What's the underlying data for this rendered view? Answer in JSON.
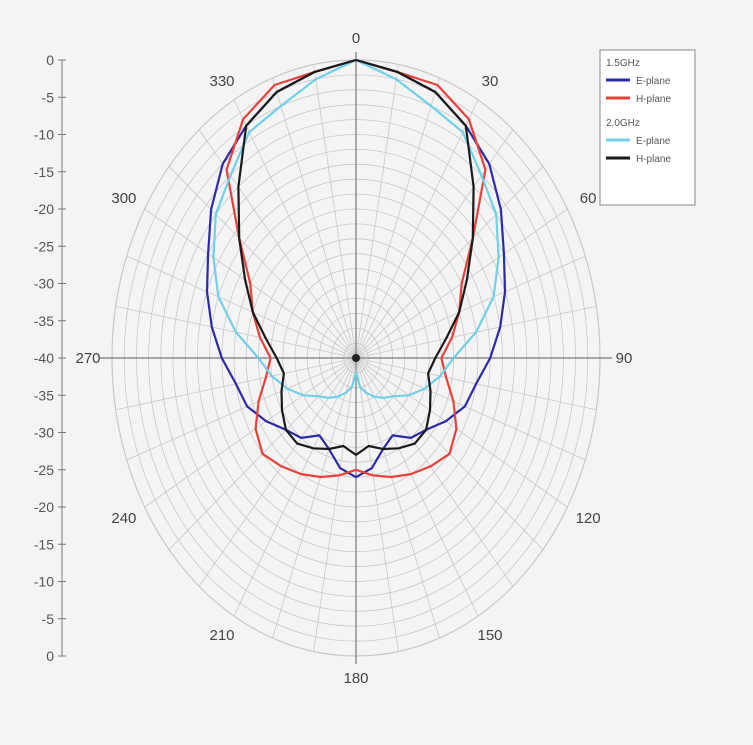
{
  "chart_data": {
    "type": "polar_line",
    "title": "",
    "radial_axis": {
      "range": [
        -40,
        0
      ],
      "tick_labels": [
        "0",
        "-5",
        "-10",
        "-15",
        "-20",
        "-25",
        "-30",
        "-35",
        "-40",
        "-35",
        "-30",
        "-25",
        "-20",
        "-15",
        "-10",
        "-5",
        "0"
      ]
    },
    "angle_labels": [
      "0",
      "30",
      "60",
      "90",
      "120",
      "150",
      "180",
      "210",
      "240",
      "270",
      "300",
      "330"
    ],
    "grid": true,
    "legend_position": "top-right",
    "legend": {
      "groups": [
        {
          "title": "1.5GHz",
          "entries": [
            {
              "label": "E-plane",
              "color": "#2b2ba8"
            },
            {
              "label": "H-plane",
              "color": "#e8403a"
            }
          ]
        },
        {
          "title": "2.0GHz",
          "entries": [
            {
              "label": "E-plane",
              "color": "#6fd0e8"
            },
            {
              "label": "H-plane",
              "color": "#1a1a1a"
            }
          ]
        }
      ]
    },
    "series": [
      {
        "name": "1.5GHz E-plane",
        "color": "#2b2ba8",
        "theta": [
          0,
          10,
          20,
          30,
          40,
          50,
          60,
          70,
          80,
          90,
          100,
          110,
          120,
          130,
          140,
          150,
          160,
          170,
          180,
          190,
          200,
          210,
          220,
          230,
          240,
          250,
          260,
          270,
          280,
          290,
          300,
          310,
          320,
          330,
          340,
          350
        ],
        "r": [
          0,
          -1,
          -2,
          -4,
          -6,
          -9,
          -12,
          -14,
          -16,
          -18,
          -20,
          -21,
          -23,
          -25,
          -26,
          -28,
          -27,
          -25,
          -24,
          -25,
          -27,
          -28,
          -26,
          -25,
          -23,
          -21,
          -20,
          -18,
          -16,
          -14,
          -12,
          -9,
          -6,
          -4,
          -2,
          -1
        ]
      },
      {
        "name": "1.5GHz H-plane",
        "color": "#e8403a",
        "theta": [
          0,
          10,
          20,
          30,
          40,
          50,
          60,
          70,
          80,
          90,
          100,
          110,
          120,
          130,
          140,
          150,
          160,
          170,
          180,
          190,
          200,
          210,
          220,
          230,
          240,
          250,
          260,
          270,
          280,
          290,
          300,
          310,
          320,
          330,
          340,
          350
        ],
        "r": [
          0,
          -1,
          -1,
          -3,
          -7,
          -15,
          -20,
          -22,
          -24,
          -26,
          -25,
          -23,
          -21,
          -20,
          -21,
          -22,
          -23,
          -24,
          -25,
          -24,
          -23,
          -22,
          -21,
          -20,
          -21,
          -23,
          -25,
          -26,
          -24,
          -22,
          -20,
          -15,
          -7,
          -3,
          -1,
          -1
        ]
      },
      {
        "name": "2.0GHz E-plane",
        "color": "#6fd0e8",
        "theta": [
          0,
          10,
          20,
          30,
          40,
          50,
          60,
          70,
          80,
          90,
          100,
          110,
          120,
          130,
          140,
          150,
          160,
          170,
          180,
          190,
          200,
          210,
          220,
          230,
          240,
          250,
          260,
          270,
          280,
          290,
          300,
          310,
          320,
          330,
          340,
          350
        ],
        "r": [
          0,
          -2,
          -4,
          -5,
          -8,
          -10,
          -13,
          -16,
          -20,
          -24,
          -26,
          -28,
          -30,
          -32,
          -33,
          -34,
          -35,
          -36,
          -38,
          -36,
          -35,
          -34,
          -33,
          -32,
          -30,
          -28,
          -26,
          -24,
          -20,
          -16,
          -13,
          -10,
          -8,
          -5,
          -4,
          -2
        ]
      },
      {
        "name": "2.0GHz H-plane",
        "color": "#1a1a1a",
        "theta": [
          0,
          10,
          20,
          30,
          40,
          50,
          60,
          70,
          80,
          90,
          100,
          110,
          120,
          130,
          140,
          150,
          160,
          170,
          180,
          190,
          200,
          210,
          220,
          230,
          240,
          250,
          260,
          270,
          280,
          290,
          300,
          310,
          320,
          330,
          340,
          350
        ],
        "r": [
          0,
          -1,
          -2,
          -4,
          -10,
          -15,
          -19,
          -22,
          -25,
          -27,
          -28,
          -27,
          -26,
          -25,
          -25,
          -26,
          -27,
          -28,
          -27,
          -28,
          -27,
          -26,
          -25,
          -25,
          -26,
          -27,
          -28,
          -27,
          -25,
          -22,
          -19,
          -15,
          -10,
          -4,
          -2,
          -1
        ]
      }
    ]
  },
  "colors": {
    "background": "#f4f4f4",
    "grid": "#c8c8c8",
    "axis": "#777777"
  }
}
